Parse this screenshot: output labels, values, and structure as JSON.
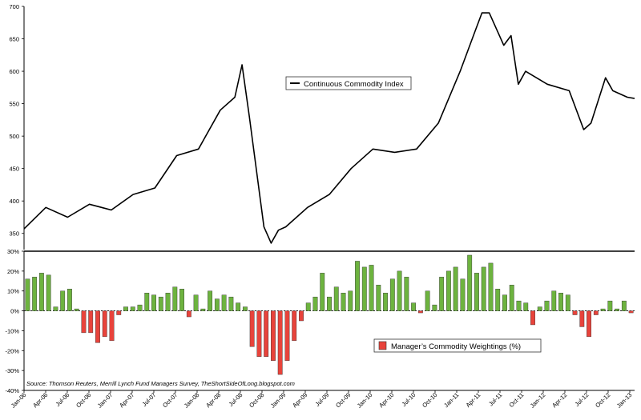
{
  "chart_data": [
    {
      "type": "line",
      "legend": {
        "label": "Continuous Commodity Index",
        "placement": "center"
      },
      "ylim": [
        325,
        700
      ],
      "y_ticks": [
        350,
        400,
        450,
        500,
        550,
        600,
        650,
        700
      ],
      "series": [
        {
          "name": "Continuous Commodity Index",
          "color": "#000000",
          "x": [
            "2006-01",
            "2006-04",
            "2006-07",
            "2006-10",
            "2007-01",
            "2007-04",
            "2007-07",
            "2007-10",
            "2008-01",
            "2008-04",
            "2008-06",
            "2008-07",
            "2008-08",
            "2008-10",
            "2008-11",
            "2008-12",
            "2009-01",
            "2009-04",
            "2009-07",
            "2009-10",
            "2010-01",
            "2010-04",
            "2010-07",
            "2010-10",
            "2011-01",
            "2011-03",
            "2011-04",
            "2011-05",
            "2011-07",
            "2011-08",
            "2011-09",
            "2011-10",
            "2012-01",
            "2012-04",
            "2012-06",
            "2012-07",
            "2012-09",
            "2012-10",
            "2012-12",
            "2013-01"
          ],
          "values": [
            357,
            390,
            375,
            395,
            386,
            410,
            420,
            470,
            480,
            540,
            560,
            610,
            530,
            360,
            335,
            355,
            360,
            390,
            410,
            450,
            480,
            475,
            480,
            520,
            600,
            660,
            690,
            690,
            640,
            655,
            580,
            600,
            580,
            570,
            510,
            520,
            590,
            570,
            560,
            558
          ]
        }
      ]
    },
    {
      "type": "bar",
      "legend": {
        "label": "Manager’s Commodity Weightings (%)",
        "placement": "center"
      },
      "ylim": [
        -40,
        30
      ],
      "y_ticks": [
        30,
        20,
        10,
        0,
        -10,
        -20,
        -30,
        -40
      ],
      "y_tick_labels": [
        "30%",
        "20%",
        "10%",
        "0%",
        "-10%",
        "-20%",
        "-30%",
        "-40%"
      ],
      "positive_color": "#6db33f",
      "negative_color": "#e8433b",
      "x_tick_labels": [
        "Jan-06",
        "Apr-06",
        "Jul-06",
        "Oct-06",
        "Jan-07",
        "Apr-07",
        "Jul-07",
        "Oct-07",
        "Jan-08",
        "Apr-08",
        "Jul-08",
        "Oct-08",
        "Jan-09",
        "Apr-09",
        "Jul-09",
        "Oct-09",
        "Jan-10",
        "Apr-10",
        "Jul-10",
        "Oct-10",
        "Jan-11",
        "Apr-11",
        "Jul-11",
        "Oct-11",
        "Jan-12",
        "Apr-12",
        "Jul-12",
        "Oct-12",
        "Jan-13"
      ],
      "series": [
        {
          "name": "Manager’s Commodity Weightings (%)",
          "values": [
            16,
            17,
            19,
            18,
            2,
            10,
            11,
            1,
            -11,
            -11,
            -16,
            -13,
            -15,
            -2,
            2,
            2,
            3,
            9,
            8,
            7,
            9,
            12,
            11,
            -3,
            8,
            1,
            10,
            6,
            8,
            7,
            4,
            2,
            -18,
            -23,
            -23,
            -25,
            -32,
            -25,
            -15,
            -5,
            4,
            7,
            19,
            7,
            12,
            9,
            10,
            25,
            22,
            23,
            13,
            9,
            16,
            20,
            17,
            4,
            -1,
            10,
            3,
            17,
            20,
            22,
            16,
            28,
            19,
            22,
            24,
            11,
            8,
            13,
            5,
            4,
            -7,
            2,
            5,
            10,
            9,
            8,
            -2,
            -8,
            -13,
            -2,
            1,
            5,
            1,
            5,
            -1
          ]
        }
      ],
      "source": "Source: Thomson Reuters, Merrill Lynch Fund Managers Survey, TheShortSideOfLong.blogspot.com"
    }
  ]
}
